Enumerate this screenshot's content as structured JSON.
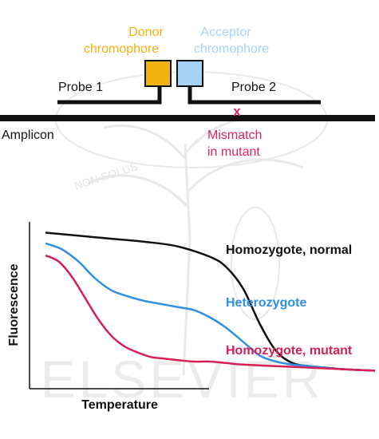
{
  "colors": {
    "donor": "#F2B311",
    "acceptor": "#A9D3F5",
    "mismatch": "#E0245E",
    "normal": "#111111",
    "heterozygote": "#2D8FE6",
    "mutant": "#D81E55",
    "watermark": "#e6e6e6"
  },
  "probe_diagram": {
    "donor_label": [
      "Donor",
      "chromophore"
    ],
    "acceptor_label": [
      "Acceptor",
      "chromophore"
    ],
    "probe1_label": "Probe 1",
    "probe2_label": "Probe 2",
    "amplicon_label": "Amplicon",
    "mismatch_mark": "x",
    "mismatch_label": [
      "Mismatch",
      "in mutant"
    ]
  },
  "watermark": {
    "motto": "NON SOLUS",
    "brand": "ELSEVIER"
  },
  "chart_data": {
    "type": "line",
    "xlabel": "Temperature",
    "ylabel": "Fluorescence",
    "x_range": [
      0,
      100
    ],
    "y_range": [
      0,
      100
    ],
    "grid": false,
    "series": [
      {
        "name": "Homozygote, normal",
        "color": "#111111",
        "x": [
          0,
          10,
          20,
          30,
          40,
          50,
          55,
          60,
          65,
          70,
          75,
          80,
          85,
          90,
          100
        ],
        "y": [
          95,
          93,
          91,
          89,
          86,
          79,
          72,
          58,
          35,
          17,
          9,
          7,
          6,
          5,
          4
        ]
      },
      {
        "name": "Heterozygote",
        "color": "#2D8FE6",
        "x": [
          0,
          5,
          10,
          15,
          20,
          25,
          30,
          35,
          40,
          45,
          50,
          55,
          60,
          65,
          70,
          75,
          80,
          85,
          90,
          100
        ],
        "y": [
          88,
          84,
          76,
          65,
          57,
          53,
          50,
          48,
          46,
          44,
          39,
          32,
          23,
          14,
          10,
          8,
          7,
          6,
          5,
          4
        ]
      },
      {
        "name": "Homozygote, mutant",
        "color": "#D81E55",
        "x": [
          0,
          4,
          8,
          12,
          16,
          20,
          24,
          28,
          32,
          36,
          40,
          45,
          50,
          55,
          60,
          70,
          80,
          90,
          100
        ],
        "y": [
          80,
          76,
          66,
          52,
          38,
          27,
          20,
          16,
          13,
          12,
          11,
          10,
          10,
          9,
          8,
          7,
          6,
          5,
          4
        ]
      }
    ]
  }
}
